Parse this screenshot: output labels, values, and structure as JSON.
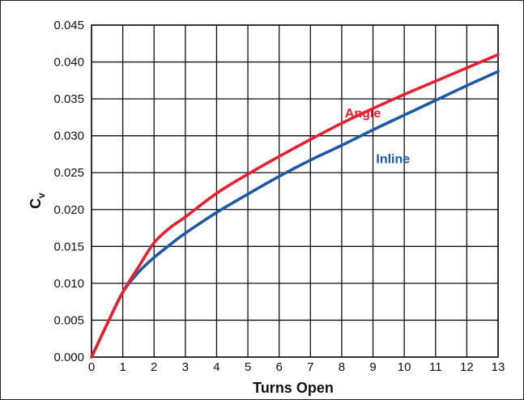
{
  "chart_data": {
    "type": "line",
    "xlabel": "Turns Open",
    "ylabel": "C",
    "ylabel_subscript": "v",
    "xlim": [
      0,
      13
    ],
    "ylim": [
      0,
      0.045
    ],
    "grid": true,
    "x_ticks": [
      "0",
      "1",
      "2",
      "3",
      "4",
      "5",
      "6",
      "7",
      "8",
      "9",
      "10",
      "11",
      "12",
      "13"
    ],
    "y_ticks": [
      "0.000",
      "0.005",
      "0.010",
      "0.015",
      "0.020",
      "0.025",
      "0.030",
      "0.035",
      "0.040",
      "0.045"
    ],
    "series": [
      {
        "name": "Angle",
        "color": "#e8202f",
        "x": [
          0,
          0.5,
          1,
          1.5,
          2,
          2.5,
          3,
          4,
          5,
          6,
          7,
          8,
          9,
          10,
          11,
          12,
          13
        ],
        "y": [
          0,
          0.0045,
          0.0088,
          0.0122,
          0.0155,
          0.0175,
          0.019,
          0.0222,
          0.0248,
          0.0272,
          0.0295,
          0.0317,
          0.0337,
          0.0356,
          0.0374,
          0.0392,
          0.041
        ]
      },
      {
        "name": "Inline",
        "color": "#1a5aa8",
        "x": [
          0,
          0.5,
          1,
          1.5,
          2,
          2.5,
          3,
          4,
          5,
          6,
          7,
          8,
          9,
          10,
          11,
          12,
          13
        ],
        "y": [
          0,
          0.0045,
          0.0088,
          0.0115,
          0.0135,
          0.0152,
          0.0168,
          0.0196,
          0.0221,
          0.0245,
          0.0267,
          0.0287,
          0.0308,
          0.0328,
          0.0348,
          0.0368,
          0.0387
        ]
      }
    ],
    "annotations": [
      {
        "text": "Angle",
        "series": "Angle",
        "x": 8.1,
        "y": 0.0325
      },
      {
        "text": "Inline",
        "series": "Inline",
        "x": 9.1,
        "y": 0.0263
      }
    ]
  }
}
